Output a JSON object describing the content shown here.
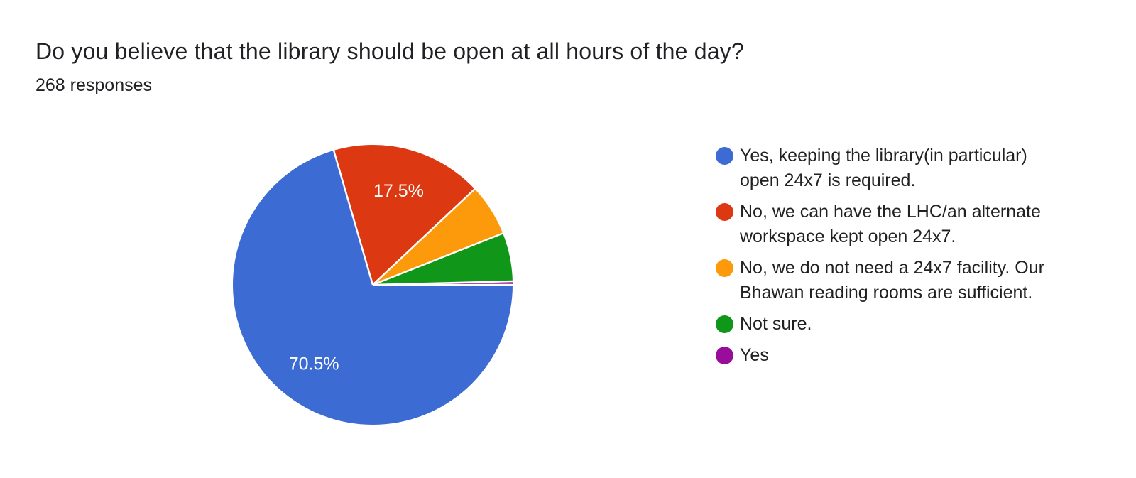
{
  "header": {
    "title": "Do you believe that the library should be open at all hours of the day?",
    "responses_label": "268 responses"
  },
  "chart_data": {
    "type": "pie",
    "title": "Do you believe that the library should be open at all hours of the day?",
    "subtitle": "268 responses",
    "legend_position": "right",
    "start_angle_deg": 90,
    "direction": "clockwise",
    "separator_color": "#ffffff",
    "slices": [
      {
        "label": "Yes, keeping the library(in particular) open 24x7 is required.",
        "value": 70.5,
        "display_label": "70.5%",
        "color": "#3c6bd4"
      },
      {
        "label": "No, we can have the LHC/an alternate workspace kept open 24x7.",
        "value": 17.5,
        "display_label": "17.5%",
        "color": "#dc3912"
      },
      {
        "label": "No, we do not need a 24x7 facility. Our Bhawan reading rooms are sufficient.",
        "value": 6.0,
        "display_label": "",
        "color": "#fc9a0b"
      },
      {
        "label": "Not sure.",
        "value": 5.6,
        "display_label": "",
        "color": "#109618"
      },
      {
        "label": "Yes",
        "value": 0.4,
        "display_label": "",
        "color": "#990d9b"
      }
    ]
  }
}
